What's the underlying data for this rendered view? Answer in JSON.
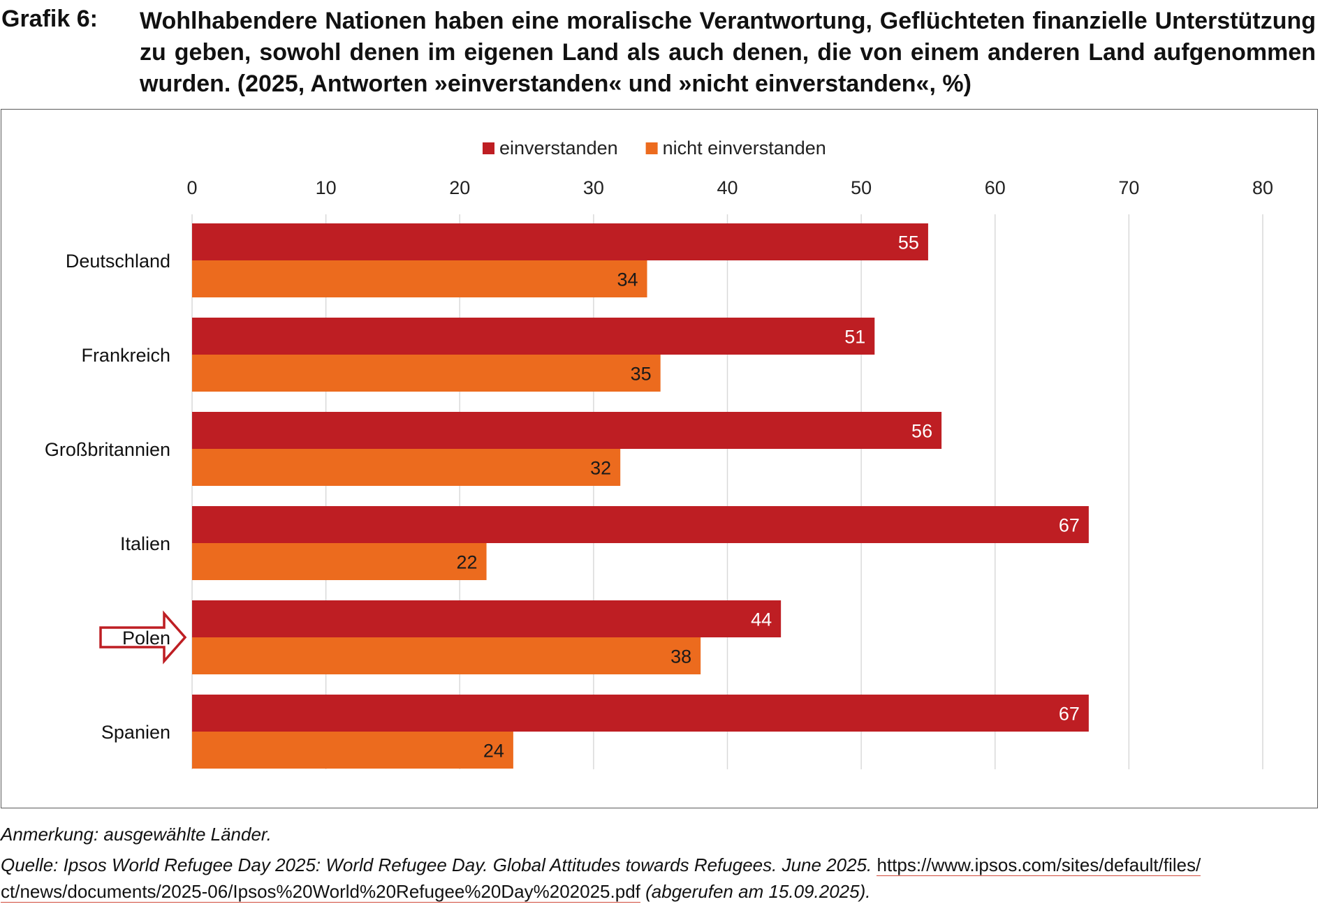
{
  "header": {
    "label": "Grafik 6:",
    "title": "Wohlhabendere Nationen haben eine moralische Verantwortung, Geflüchteten finanzielle Unterstützung zu geben, sowohl denen im eigenen Land als auch denen, die von einem anderen Land aufgenommen wurden. (2025, Antworten »einverstanden« und »nicht einverstanden«, %)"
  },
  "chart_data": {
    "type": "bar",
    "orientation": "horizontal",
    "categories": [
      "Deutschland",
      "Frankreich",
      "Großbritannien",
      "Italien",
      "Polen",
      "Spanien"
    ],
    "series": [
      {
        "name": "einverstanden",
        "color": "#be1e23",
        "values": [
          55,
          51,
          56,
          67,
          44,
          67
        ]
      },
      {
        "name": "nicht einverstanden",
        "color": "#ec6b1e",
        "values": [
          34,
          35,
          32,
          22,
          38,
          24
        ]
      }
    ],
    "xlim": [
      0,
      80
    ],
    "xticks": [
      0,
      10,
      20,
      30,
      40,
      50,
      60,
      70,
      80
    ],
    "legend_position": "top",
    "grid": "vertical",
    "highlight": {
      "category": "Polen",
      "marker": "arrow-outline",
      "color": "#be1e23"
    }
  },
  "footer": {
    "note": "Anmerkung: ausgewählte Länder.",
    "source_prefix": "Quelle: Ipsos World Refugee Day 2025: World Refugee Day. Global Attitudes towards Refugees. June 2025.",
    "url_line1": "https://www.ipsos.com/sites/default/files/",
    "url_line2": "ct/news/documents/2025-06/Ipsos%20World%20Refugee%20Day%202025.pdf",
    "retrieved": "(abgerufen am 15.09.2025)."
  }
}
